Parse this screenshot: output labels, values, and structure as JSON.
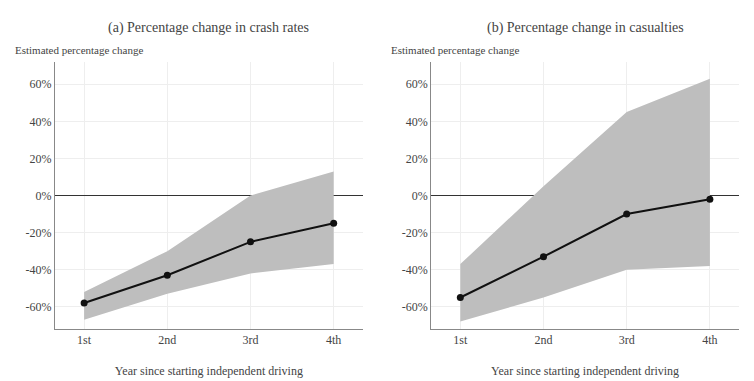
{
  "chart_data": [
    {
      "type": "line",
      "title": "(a) Percentage change in crash rates",
      "xlabel": "Year since starting independent driving",
      "ylabel": "Estimated percentage change",
      "x": [
        1,
        2,
        3,
        4
      ],
      "xlim": [
        0.65,
        4.35
      ],
      "xticks": [
        {
          "value": 1,
          "label": "1st"
        },
        {
          "value": 2,
          "label": "2nd"
        },
        {
          "value": 3,
          "label": "3rd"
        },
        {
          "value": 4,
          "label": "4th"
        }
      ],
      "ylim": [
        -0.72,
        0.72
      ],
      "yticks": [
        {
          "value": -0.6,
          "label": "-60%"
        },
        {
          "value": -0.4,
          "label": "-40%"
        },
        {
          "value": -0.2,
          "label": "-20%"
        },
        {
          "value": 0.0,
          "label": "0%"
        },
        {
          "value": 0.2,
          "label": "20%"
        },
        {
          "value": 0.4,
          "label": "40%"
        },
        {
          "value": 0.6,
          "label": "60%"
        }
      ],
      "grid": true,
      "series": [
        {
          "type": "band",
          "color": "#bebebe",
          "ci_upper": [
            -0.52,
            -0.3,
            0.0,
            0.13
          ],
          "ci_lower": [
            -0.67,
            -0.53,
            -0.42,
            -0.37
          ]
        },
        {
          "type": "line",
          "color": "#111111",
          "marker": "circle",
          "values": [
            -0.58,
            -0.43,
            -0.25,
            -0.15
          ]
        }
      ]
    },
    {
      "type": "line",
      "title": "(b) Percentage change in casualties",
      "xlabel": "Year since starting independent driving",
      "ylabel": "Estimated percentage change",
      "x": [
        1,
        2,
        3,
        4
      ],
      "xlim": [
        0.65,
        4.35
      ],
      "xticks": [
        {
          "value": 1,
          "label": "1st"
        },
        {
          "value": 2,
          "label": "2nd"
        },
        {
          "value": 3,
          "label": "3rd"
        },
        {
          "value": 4,
          "label": "4th"
        }
      ],
      "ylim": [
        -0.72,
        0.72
      ],
      "yticks": [
        {
          "value": -0.6,
          "label": "-60%"
        },
        {
          "value": -0.4,
          "label": "-40%"
        },
        {
          "value": -0.2,
          "label": "-20%"
        },
        {
          "value": 0.0,
          "label": "0%"
        },
        {
          "value": 0.2,
          "label": "20%"
        },
        {
          "value": 0.4,
          "label": "40%"
        },
        {
          "value": 0.6,
          "label": "60%"
        }
      ],
      "grid": true,
      "series": [
        {
          "type": "band",
          "color": "#bebebe",
          "ci_upper": [
            -0.37,
            0.05,
            0.45,
            0.63
          ],
          "ci_lower": [
            -0.68,
            -0.55,
            -0.4,
            -0.38
          ]
        },
        {
          "type": "line",
          "color": "#111111",
          "marker": "circle",
          "values": [
            -0.55,
            -0.33,
            -0.1,
            -0.02
          ]
        }
      ]
    }
  ]
}
